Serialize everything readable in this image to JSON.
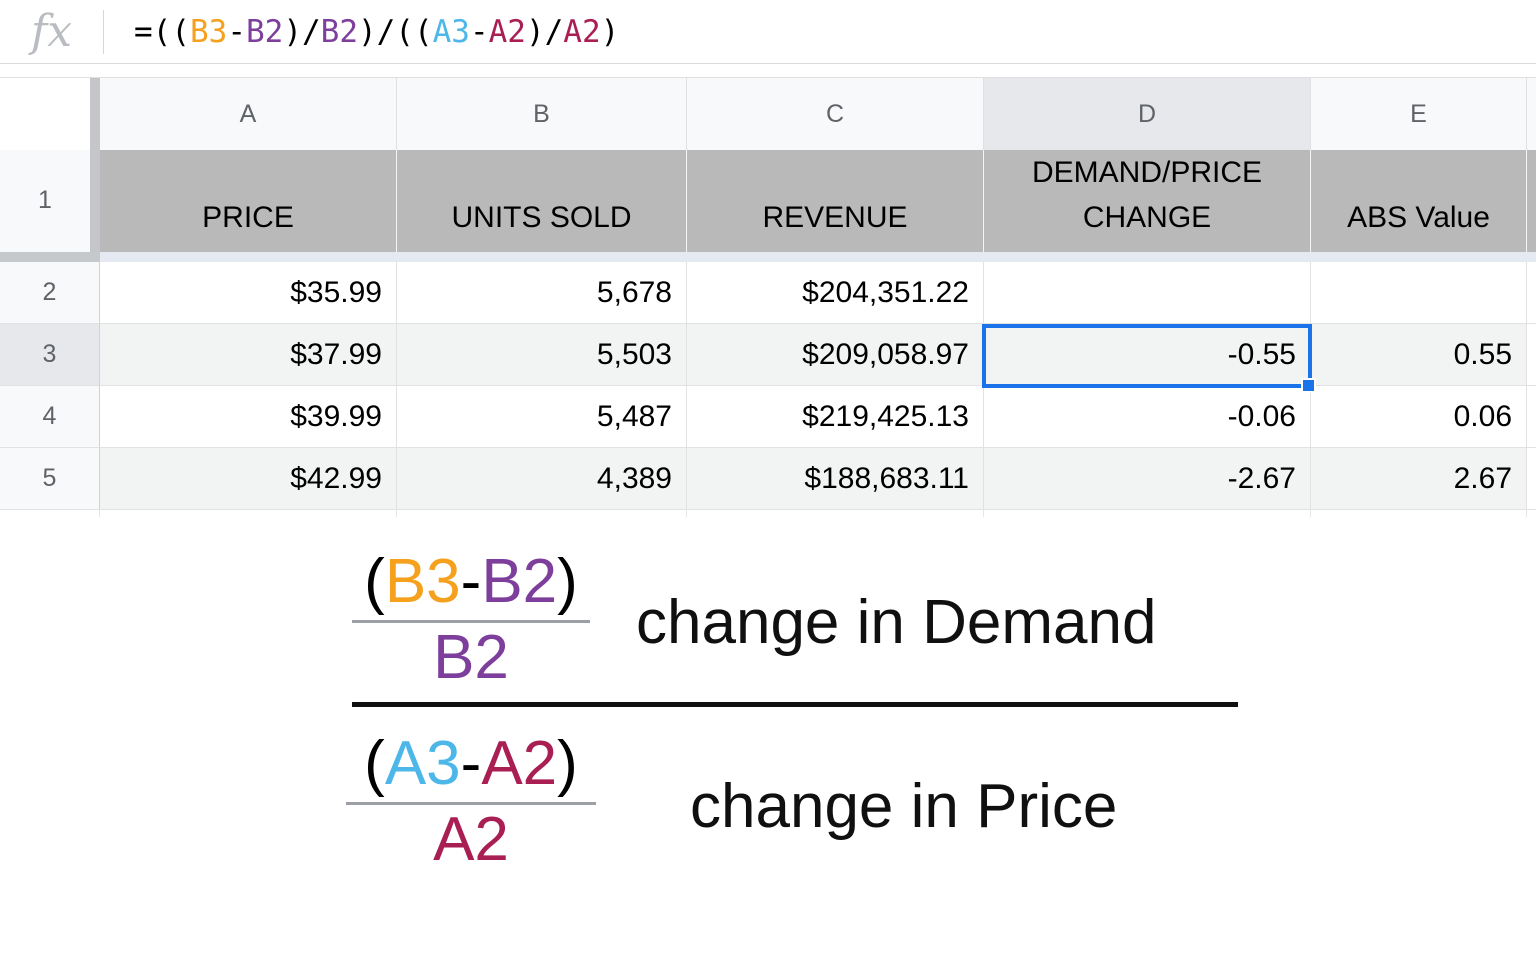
{
  "formula_bar": {
    "fx_label": "fx",
    "formula_text": "=((B3-B2)/B2)/((A3-A2)/A2)",
    "tokens": [
      {
        "text": "=((",
        "color": "black"
      },
      {
        "text": "B3",
        "color": "orange"
      },
      {
        "text": "-",
        "color": "black"
      },
      {
        "text": "B2",
        "color": "purple"
      },
      {
        "text": ")/",
        "color": "black"
      },
      {
        "text": "B2",
        "color": "purple"
      },
      {
        "text": ")/((",
        "color": "black"
      },
      {
        "text": "A3",
        "color": "blue"
      },
      {
        "text": "-",
        "color": "black"
      },
      {
        "text": "A2",
        "color": "crimson"
      },
      {
        "text": ")/",
        "color": "black"
      },
      {
        "text": "A2",
        "color": "crimson"
      },
      {
        "text": ")",
        "color": "black"
      }
    ]
  },
  "spreadsheet": {
    "column_letters": [
      "A",
      "B",
      "C",
      "D",
      "E"
    ],
    "selected_cell": "D3",
    "header_row": {
      "label": "1",
      "cells": [
        "PRICE",
        "UNITS SOLD",
        "REVENUE",
        "DEMAND/PRICE\nCHANGE",
        "ABS Value"
      ]
    },
    "rows": [
      {
        "label": "2",
        "cells": [
          "$35.99",
          "5,678",
          "$204,351.22",
          "",
          ""
        ]
      },
      {
        "label": "3",
        "cells": [
          "$37.99",
          "5,503",
          "$209,058.97",
          "-0.55",
          "0.55"
        ]
      },
      {
        "label": "4",
        "cells": [
          "$39.99",
          "5,487",
          "$219,425.13",
          "-0.06",
          "0.06"
        ]
      },
      {
        "label": "5",
        "cells": [
          "$42.99",
          "4,389",
          "$188,683.11",
          "-2.67",
          "2.67"
        ]
      }
    ]
  },
  "annotation": {
    "top_fraction": {
      "open": "(",
      "ref1": "B3",
      "minus": "-",
      "ref2": "B2",
      "close": ")",
      "denominator": "B2",
      "label": "change in Demand"
    },
    "bottom_fraction": {
      "open": "(",
      "ref1": "A3",
      "minus": "-",
      "ref2": "A2",
      "close": ")",
      "denominator": "A2",
      "label": "change in Price"
    }
  },
  "colors": {
    "ref_orange": "#F5A11D",
    "ref_purple": "#7D3F9B",
    "ref_blue": "#4CB7E8",
    "ref_crimson": "#A91E53",
    "selection_blue": "#1A73E8",
    "header_row_fill": "#B9B9B9",
    "row_banding": "#F2F3F3",
    "header_strip_bg": "#F8F9FA",
    "selected_header_highlight": "#E6E8EB",
    "gridline": "#E2E2E2",
    "header_text_gray": "#5F6368"
  }
}
